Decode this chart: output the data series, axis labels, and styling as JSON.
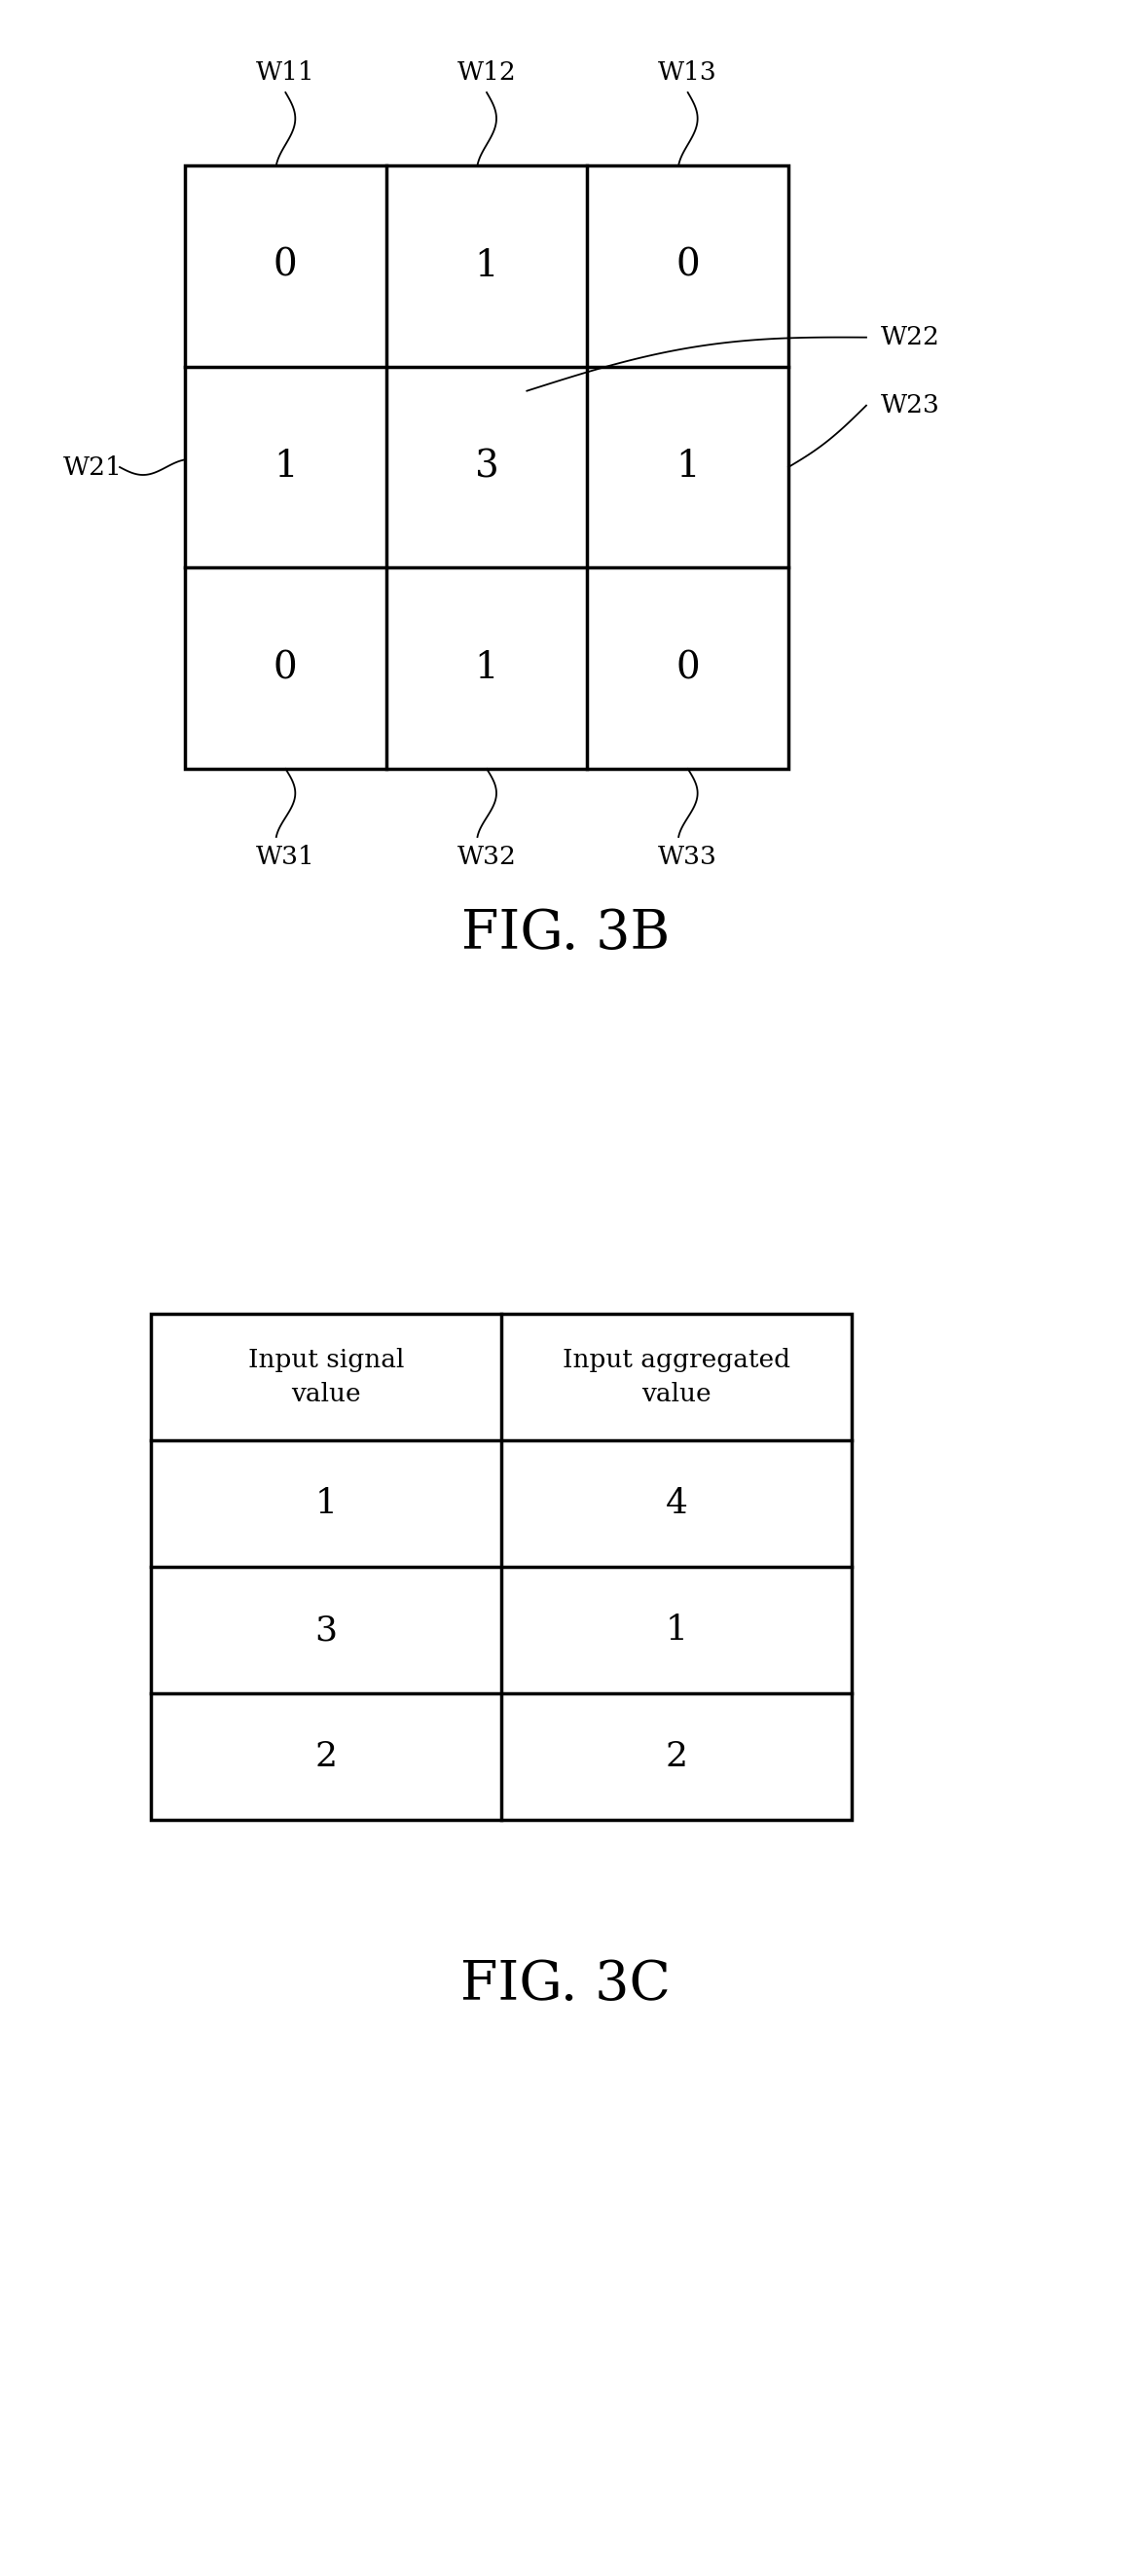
{
  "background_color": "#ffffff",
  "fig3b": {
    "grid_values": [
      [
        0,
        1,
        0
      ],
      [
        1,
        3,
        1
      ],
      [
        0,
        1,
        0
      ]
    ],
    "top_labels": [
      "W11",
      "W12",
      "W13"
    ],
    "bottom_labels": [
      "W31",
      "W32",
      "W33"
    ],
    "left_label": "W21",
    "right_label_top": "W22",
    "right_label_bot": "W23",
    "caption": "FIG. 3B"
  },
  "fig3c": {
    "col_headers": [
      "Input signal\nvalue",
      "Input aggregated\nvalue"
    ],
    "rows": [
      [
        "1",
        "4"
      ],
      [
        "3",
        "1"
      ],
      [
        "2",
        "2"
      ]
    ],
    "caption": "FIG. 3C"
  },
  "line_color": "#000000",
  "text_color": "#000000",
  "label_fontsize": 19,
  "cell_value_fontsize": 28,
  "caption_fontsize": 40,
  "header_fontsize": 19,
  "table_value_fontsize": 26
}
